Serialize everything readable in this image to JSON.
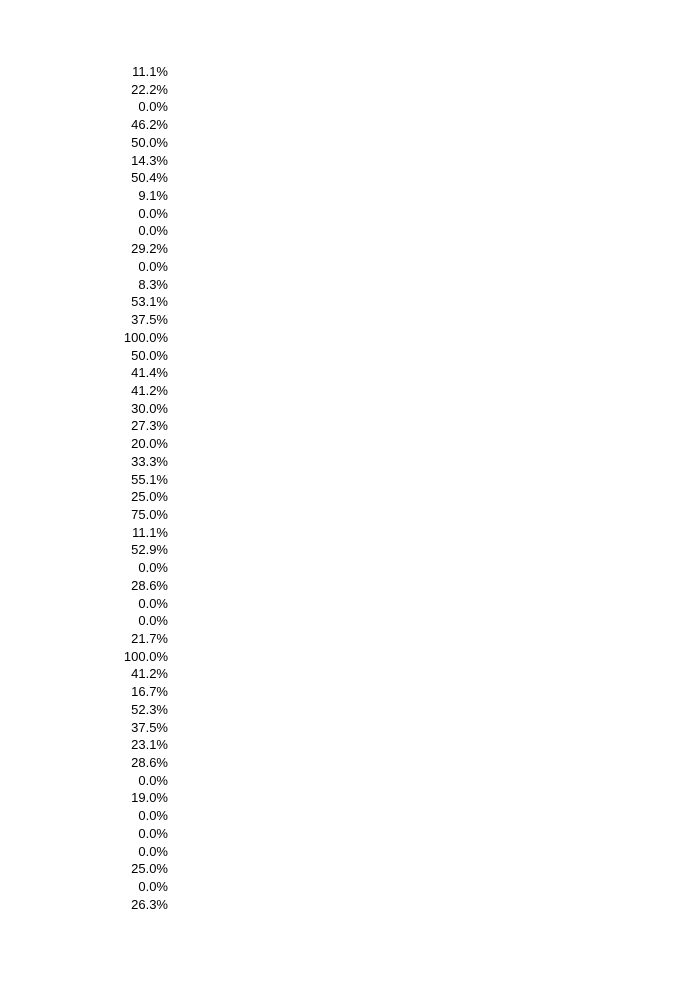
{
  "page": {
    "background_color": "#ffffff",
    "text_color": "#000000"
  },
  "column": {
    "description": "single right-aligned column of percentage values",
    "values": [
      "11.1%",
      "22.2%",
      "0.0%",
      "46.2%",
      "50.0%",
      "14.3%",
      "50.4%",
      "9.1%",
      "0.0%",
      "0.0%",
      "29.2%",
      "0.0%",
      "8.3%",
      "53.1%",
      "37.5%",
      "100.0%",
      "50.0%",
      "41.4%",
      "41.2%",
      "30.0%",
      "27.3%",
      "20.0%",
      "33.3%",
      "55.1%",
      "25.0%",
      "75.0%",
      "11.1%",
      "52.9%",
      "0.0%",
      "28.6%",
      "0.0%",
      "0.0%",
      "21.7%",
      "100.0%",
      "41.2%",
      "16.7%",
      "52.3%",
      "37.5%",
      "23.1%",
      "28.6%",
      "0.0%",
      "19.0%",
      "0.0%",
      "0.0%",
      "0.0%",
      "25.0%",
      "0.0%",
      "26.3%"
    ]
  }
}
